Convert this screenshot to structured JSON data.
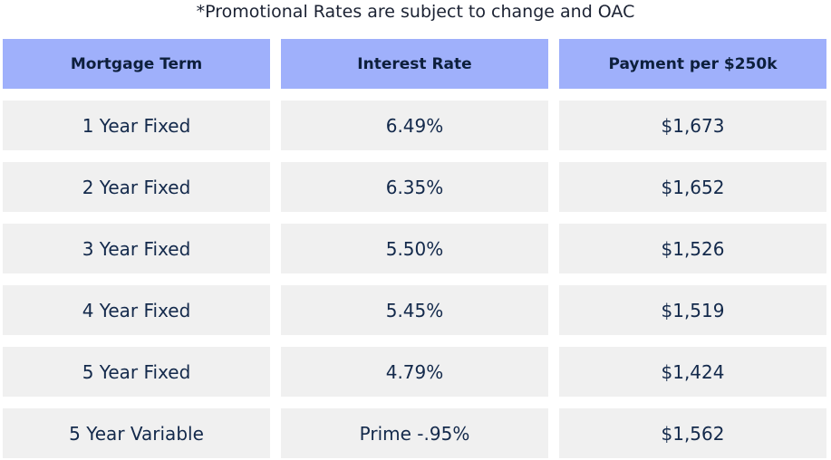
{
  "note": "*Promotional Rates are subject to change and OAC",
  "headers": [
    "Mortgage Term",
    "Interest Rate",
    "Payment per $250k"
  ],
  "rows": [
    [
      "1 Year Fixed",
      "6.49%",
      "$1,673"
    ],
    [
      "2 Year Fixed",
      "6.35%",
      "$1,652"
    ],
    [
      "3 Year Fixed",
      "5.50%",
      "$1,526"
    ],
    [
      "4 Year Fixed",
      "5.45%",
      "$1,519"
    ],
    [
      "5 Year Fixed",
      "4.79%",
      "$1,424"
    ],
    [
      "5 Year Variable",
      "Prime -.95%",
      "$1,562"
    ]
  ],
  "colors": {
    "header_bg": "#9fb0fb",
    "cell_bg": "#f0f0f0",
    "text": "#13294b"
  }
}
